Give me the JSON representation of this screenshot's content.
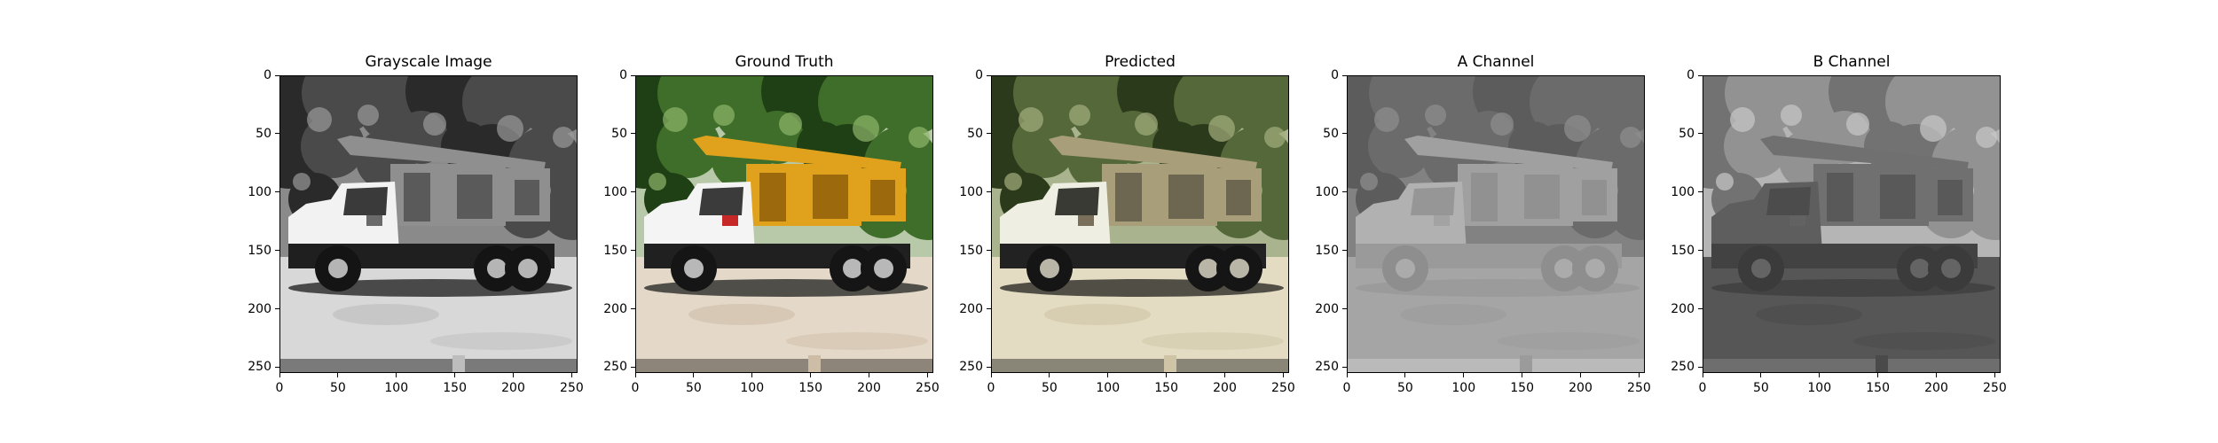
{
  "figure": {
    "panels": [
      {
        "id": "grayscale",
        "title": "Grayscale Image",
        "variant": "grayscale"
      },
      {
        "id": "ground-truth",
        "title": "Ground Truth",
        "variant": "color"
      },
      {
        "id": "predicted",
        "title": "Predicted",
        "variant": "predicted"
      },
      {
        "id": "a-channel",
        "title": "A Channel",
        "variant": "a-channel"
      },
      {
        "id": "b-channel",
        "title": "B Channel",
        "variant": "b-channel"
      }
    ],
    "x_ticks": [
      "0",
      "50",
      "100",
      "150",
      "200",
      "250"
    ],
    "y_ticks": [
      "0",
      "50",
      "100",
      "150",
      "200",
      "250"
    ],
    "axis_range": [
      0,
      255
    ]
  }
}
